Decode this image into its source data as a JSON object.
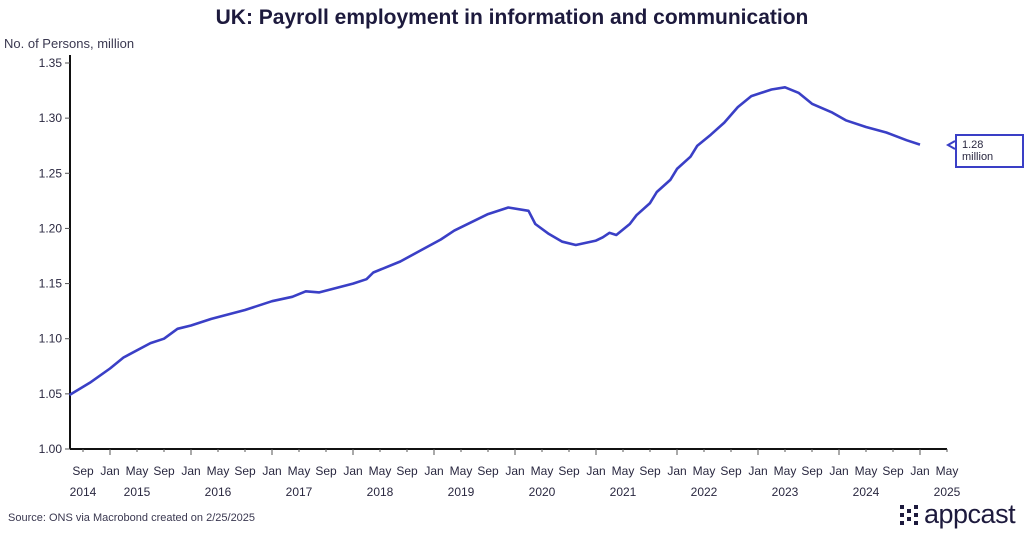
{
  "chart_data": {
    "type": "line",
    "title": "UK: Payroll employment in information and communication",
    "ylabel": "No. of Persons, million",
    "xlabel": "",
    "ylim": [
      1.0,
      1.35
    ],
    "yticks": [
      "1.00",
      "1.05",
      "1.10",
      "1.15",
      "1.20",
      "1.25",
      "1.30",
      "1.35"
    ],
    "grid": false,
    "xtick_labels": [
      {
        "month": "Sep",
        "year": "2014",
        "date": "2014-09"
      },
      {
        "month": "Jan",
        "year": "",
        "date": "2015-01"
      },
      {
        "month": "May",
        "year": "2015",
        "date": "2015-05"
      },
      {
        "month": "Sep",
        "year": "",
        "date": "2015-09"
      },
      {
        "month": "Jan",
        "year": "",
        "date": "2016-01"
      },
      {
        "month": "May",
        "year": "2016",
        "date": "2016-05"
      },
      {
        "month": "Sep",
        "year": "",
        "date": "2016-09"
      },
      {
        "month": "Jan",
        "year": "",
        "date": "2017-01"
      },
      {
        "month": "May",
        "year": "2017",
        "date": "2017-05"
      },
      {
        "month": "Sep",
        "year": "",
        "date": "2017-09"
      },
      {
        "month": "Jan",
        "year": "",
        "date": "2018-01"
      },
      {
        "month": "May",
        "year": "2018",
        "date": "2018-05"
      },
      {
        "month": "Sep",
        "year": "",
        "date": "2018-09"
      },
      {
        "month": "Jan",
        "year": "",
        "date": "2019-01"
      },
      {
        "month": "May",
        "year": "2019",
        "date": "2019-05"
      },
      {
        "month": "Sep",
        "year": "",
        "date": "2019-09"
      },
      {
        "month": "Jan",
        "year": "",
        "date": "2020-01"
      },
      {
        "month": "May",
        "year": "2020",
        "date": "2020-05"
      },
      {
        "month": "Sep",
        "year": "",
        "date": "2020-09"
      },
      {
        "month": "Jan",
        "year": "",
        "date": "2021-01"
      },
      {
        "month": "May",
        "year": "2021",
        "date": "2021-05"
      },
      {
        "month": "Sep",
        "year": "",
        "date": "2021-09"
      },
      {
        "month": "Jan",
        "year": "",
        "date": "2022-01"
      },
      {
        "month": "May",
        "year": "2022",
        "date": "2022-05"
      },
      {
        "month": "Sep",
        "year": "",
        "date": "2022-09"
      },
      {
        "month": "Jan",
        "year": "",
        "date": "2023-01"
      },
      {
        "month": "May",
        "year": "2023",
        "date": "2023-05"
      },
      {
        "month": "Sep",
        "year": "",
        "date": "2023-09"
      },
      {
        "month": "Jan",
        "year": "",
        "date": "2024-01"
      },
      {
        "month": "May",
        "year": "2024",
        "date": "2024-05"
      },
      {
        "month": "Sep",
        "year": "",
        "date": "2024-09"
      },
      {
        "month": "Jan",
        "year": "",
        "date": "2025-01"
      },
      {
        "month": "May",
        "year": "2025",
        "date": "2025-05"
      }
    ],
    "series": [
      {
        "name": "Payroll employment in information and communication",
        "color": "#3a3fc6",
        "x": [
          "2014-07",
          "2014-10",
          "2015-01",
          "2015-03",
          "2015-07",
          "2015-09",
          "2015-11",
          "2016-01",
          "2016-04",
          "2016-09",
          "2017-01",
          "2017-04",
          "2017-06",
          "2017-08",
          "2018-01",
          "2018-03",
          "2018-04",
          "2018-08",
          "2018-11",
          "2019-02",
          "2019-04",
          "2019-09",
          "2019-12",
          "2020-03",
          "2020-04",
          "2020-06",
          "2020-08",
          "2020-10",
          "2021-01",
          "2021-02",
          "2021-03",
          "2021-04",
          "2021-06",
          "2021-07",
          "2021-09",
          "2021-10",
          "2021-12",
          "2022-01",
          "2022-03",
          "2022-04",
          "2022-06",
          "2022-08",
          "2022-10",
          "2022-12",
          "2023-03",
          "2023-05",
          "2023-07",
          "2023-09",
          "2023-12",
          "2024-02",
          "2024-05",
          "2024-08",
          "2024-11",
          "2025-01"
        ],
        "values": [
          1.049,
          1.06,
          1.073,
          1.083,
          1.096,
          1.1,
          1.109,
          1.112,
          1.118,
          1.126,
          1.134,
          1.138,
          1.143,
          1.142,
          1.15,
          1.154,
          1.16,
          1.17,
          1.18,
          1.19,
          1.198,
          1.213,
          1.219,
          1.216,
          1.204,
          1.195,
          1.188,
          1.185,
          1.189,
          1.192,
          1.196,
          1.194,
          1.204,
          1.212,
          1.223,
          1.233,
          1.244,
          1.254,
          1.265,
          1.275,
          1.285,
          1.296,
          1.31,
          1.32,
          1.326,
          1.328,
          1.323,
          1.313,
          1.305,
          1.298,
          1.292,
          1.287,
          1.28,
          1.276
        ]
      }
    ],
    "annotation": "1.28 million"
  },
  "source": "Source: ONS via Macrobond created on 2/25/2025",
  "logo": "appcast"
}
